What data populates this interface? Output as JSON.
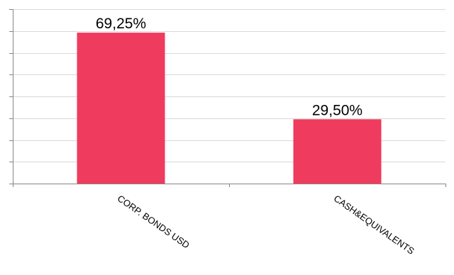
{
  "chart_data": {
    "type": "bar",
    "categories": [
      "CORP. BONDS  USD",
      "CASH&EQUIVALENTS"
    ],
    "values": [
      69.25,
      29.5
    ],
    "data_labels": [
      "69,25%",
      "29,50%"
    ],
    "title": "",
    "xlabel": "",
    "ylabel": "",
    "ylim": [
      0,
      80
    ],
    "y_tick_labels_shown": false,
    "grid": true,
    "legend": "none",
    "bar_color": "#ef3b5d",
    "category_label_rotation": "diagonal-down-right"
  }
}
